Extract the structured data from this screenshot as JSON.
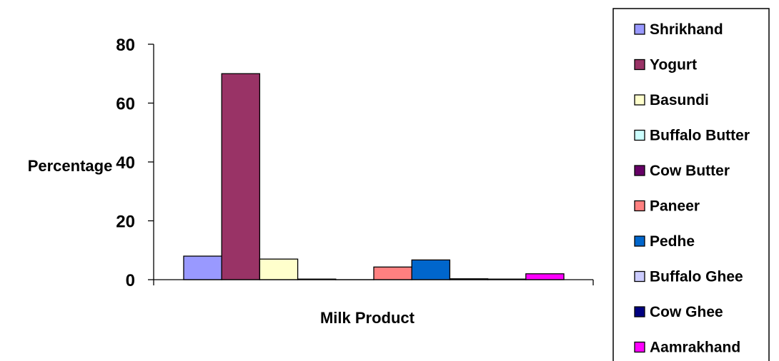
{
  "chart_data": {
    "type": "bar",
    "title": "",
    "xlabel": "Milk Product",
    "ylabel": "Percentage",
    "ylim": [
      0,
      80
    ],
    "yticks": [
      0,
      20,
      40,
      60,
      80
    ],
    "grid": false,
    "legend_position": "right",
    "categories": [
      ""
    ],
    "series": [
      {
        "name": "Shrikhand",
        "value": 8,
        "color": "#9999ff"
      },
      {
        "name": "Yogurt",
        "value": 70,
        "color": "#993366"
      },
      {
        "name": "Basundi",
        "value": 7,
        "color": "#ffffcc"
      },
      {
        "name": "Buffalo Butter",
        "value": 0.2,
        "color": "#ccffff"
      },
      {
        "name": "Cow Butter",
        "value": 0,
        "color": "#660066"
      },
      {
        "name": "Paneer",
        "value": 4.3,
        "color": "#ff8080"
      },
      {
        "name": "Pedhe",
        "value": 6.7,
        "color": "#0066cc"
      },
      {
        "name": "Buffalo Ghee",
        "value": 0.3,
        "color": "#ccccff"
      },
      {
        "name": "Cow Ghee",
        "value": 0.2,
        "color": "#000080"
      },
      {
        "name": "Aamrakhand",
        "value": 2,
        "color": "#ff00ff"
      }
    ]
  }
}
